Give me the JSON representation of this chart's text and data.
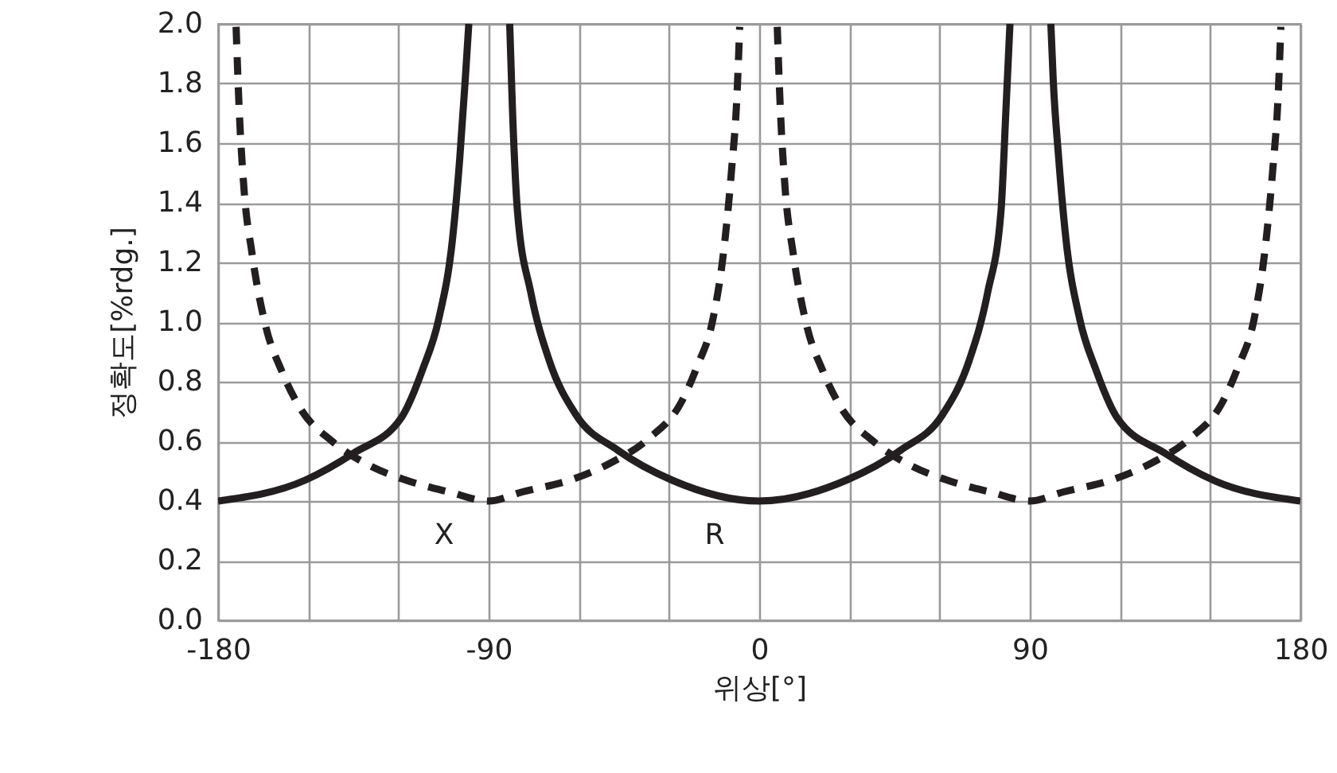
{
  "chart_data": {
    "type": "line",
    "xlabel": "위상[°]",
    "ylabel": "정확도[%rdg.]",
    "xlim": [
      -180,
      180
    ],
    "ylim": [
      0,
      2
    ],
    "xticks": [
      -180,
      {
        "value": -150,
        "label": null
      },
      {
        "value": -120,
        "label": null
      },
      -90,
      {
        "value": -60,
        "label": null
      },
      {
        "value": -30,
        "label": null
      },
      0,
      {
        "value": 30,
        "label": null
      },
      {
        "value": 60,
        "label": null
      },
      90,
      {
        "value": 120,
        "label": null
      },
      {
        "value": 150,
        "label": null
      },
      180
    ],
    "yticks": [
      {
        "value": 0,
        "label": "0.0"
      },
      0.2,
      0.4,
      0.6,
      0.8,
      {
        "value": 1,
        "label": "1.0"
      },
      1.2,
      1.4,
      1.6,
      1.8,
      {
        "value": 2,
        "label": "2.0"
      }
    ],
    "grid": true,
    "series": [
      {
        "name": "R",
        "color": "#231f20",
        "line_style": "solid",
        "x": [
          -180,
          -151,
          -135,
          -119,
          -112,
          -106.6,
          -102,
          -99.6,
          -97.8,
          -96.6,
          -90,
          -83,
          -82.1,
          -80.4,
          -76,
          -69.8,
          -61,
          -47,
          -29,
          0,
          29,
          47,
          61,
          69.8,
          76,
          80.4,
          82.1,
          83.4,
          90,
          97,
          97.8,
          99.6,
          102,
          106.6,
          112,
          119,
          135,
          151,
          180
        ],
        "values": [
          0.4,
          0.47,
          0.56,
          0.68,
          0.84,
          1.01,
          1.28,
          1.55,
          1.81,
          2.0,
          null,
          2.0,
          1.72,
          1.37,
          1.1,
          0.87,
          0.69,
          0.57,
          0.47,
          0.4,
          0.47,
          0.57,
          0.69,
          0.87,
          1.1,
          1.37,
          1.72,
          2.0,
          null,
          2.0,
          1.81,
          1.55,
          1.28,
          1.01,
          0.84,
          0.68,
          0.56,
          0.47,
          0.4
        ]
      },
      {
        "name": "X",
        "color": "#231f20",
        "line_style": "dashed",
        "x": [
          -174,
          -173,
          -171.4,
          -168.7,
          -164,
          -159,
          -152.6,
          -142,
          -129.8,
          -117.5,
          -103,
          -90,
          -79,
          -63,
          -49,
          -36.7,
          -26,
          -20.7,
          -15.4,
          -11.8,
          -9.2,
          -7.4,
          -6.5,
          0,
          6,
          7,
          8.6,
          11.3,
          16,
          21,
          27.4,
          38,
          50.2,
          62.5,
          77,
          90,
          101,
          117,
          131,
          143.3,
          154,
          159.3,
          164.6,
          168.2,
          170.8,
          172.6,
          173.5
        ],
        "values": [
          1.99,
          1.72,
          1.45,
          1.23,
          0.98,
          0.84,
          0.71,
          0.6,
          0.52,
          0.47,
          0.43,
          0.4,
          0.43,
          0.47,
          0.53,
          0.61,
          0.73,
          0.85,
          1.01,
          1.24,
          1.51,
          1.76,
          1.99,
          null,
          1.99,
          1.72,
          1.45,
          1.23,
          0.98,
          0.84,
          0.71,
          0.6,
          0.52,
          0.47,
          0.43,
          0.4,
          0.43,
          0.47,
          0.53,
          0.61,
          0.73,
          0.85,
          1.01,
          1.24,
          1.51,
          1.76,
          1.99
        ]
      }
    ]
  }
}
